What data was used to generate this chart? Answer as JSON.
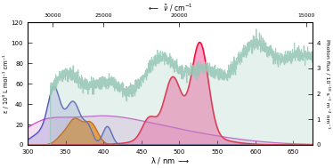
{
  "xlim": [
    300,
    675
  ],
  "ylim_left": [
    0,
    120
  ],
  "ylim_right": [
    0,
    4.8
  ],
  "xlabel": "λ / nm",
  "ylabel_left": "ε / 10³ L mol⁻¹ cm⁻¹",
  "ylabel_right": "Photon flux / 10⁻¹⁸ s⁻¹ m⁻² nm⁻¹",
  "top_xlabel_left": "ṽ / cm⁻¹",
  "background": "#ffffff",
  "fullerene1_line": "#5555bb",
  "fullerene1_fill": "#8888cc",
  "fullerene2_line": "#cc55cc",
  "fullerene2_fill": "#dd99dd",
  "ndi_fill": "#ff8800",
  "ndi_line": "#cc5500",
  "pdi_fill": "#ff66aa",
  "pdi_line": "#ee1133",
  "solar_color": "#99c8b8",
  "yticks_left": [
    0,
    20,
    40,
    60,
    80,
    100,
    120
  ],
  "yticks_right": [
    0,
    1,
    2,
    3,
    4
  ]
}
